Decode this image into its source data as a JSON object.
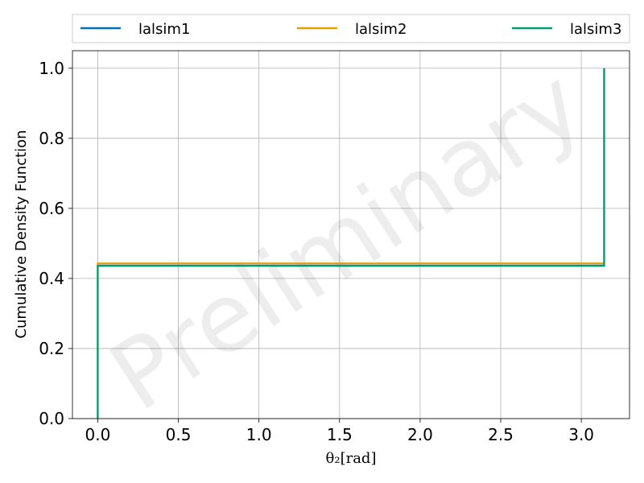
{
  "chart_data": {
    "type": "line",
    "xlabel": "θ₂[rad]",
    "ylabel": "Cumulative Density Function",
    "xlim": [
      -0.157,
      3.299
    ],
    "ylim": [
      0.0,
      1.05
    ],
    "xticks": [
      0.0,
      0.5,
      1.0,
      1.5,
      2.0,
      2.5,
      3.0
    ],
    "xtick_labels": [
      "0.0",
      "0.5",
      "1.0",
      "1.5",
      "2.0",
      "2.5",
      "3.0"
    ],
    "yticks": [
      0.0,
      0.2,
      0.4,
      0.6,
      0.8,
      1.0
    ],
    "ytick_labels": [
      "0.0",
      "0.2",
      "0.4",
      "0.6",
      "0.8",
      "1.0"
    ],
    "grid": true,
    "legend_position": "top",
    "watermark": "Preliminary",
    "series": [
      {
        "name": "lalsim1",
        "color": "#0072b2",
        "x": [
          0.0,
          0.0,
          3.1416,
          3.1416
        ],
        "y": [
          0.0,
          0.437,
          0.437,
          1.0
        ]
      },
      {
        "name": "lalsim2",
        "color": "#e69f00",
        "x": [
          0.0,
          0.0,
          3.1416,
          3.1416
        ],
        "y": [
          0.0,
          0.443,
          0.443,
          1.0
        ]
      },
      {
        "name": "lalsim3",
        "color": "#009e73",
        "x": [
          0.0,
          0.0,
          3.1416,
          3.1416
        ],
        "y": [
          0.0,
          0.436,
          0.436,
          1.0
        ]
      }
    ]
  }
}
